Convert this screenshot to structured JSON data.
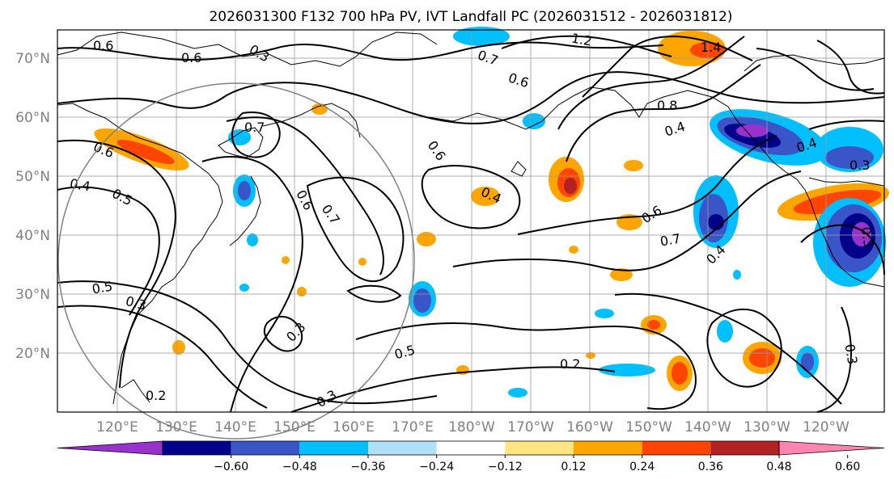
{
  "figure": {
    "title": "2026031300 F132 700 hPa PV, IVT Landfall PC (2026031512 - 2026031812)"
  },
  "map": {
    "lat_labels": [
      "70°N",
      "60°N",
      "50°N",
      "40°N",
      "30°N",
      "20°N"
    ],
    "lon_labels": [
      "120°E",
      "130°E",
      "140°E",
      "150°E",
      "160°E",
      "170°E",
      "180°W",
      "170°W",
      "160°W",
      "150°W",
      "140°W",
      "130°W",
      "120°W"
    ],
    "contour_labels": [
      "0.6",
      "0.6",
      "0.3",
      "1.2",
      "1.4",
      "0.7",
      "0.6",
      "0.8",
      "0.4",
      "0.4",
      "0.3",
      "0.6",
      "0.7",
      "0.4",
      "0.6",
      "0.4",
      "0.5",
      "0.6",
      "0.7",
      "0.7",
      "0.6",
      "0.4",
      "0.5",
      "0.3",
      "0.3",
      "0.5",
      "0.2",
      "0.3",
      "0.2",
      "0.3",
      "0.3"
    ]
  },
  "colorbar": {
    "tick_labels": [
      "−0.60",
      "−0.48",
      "−0.36",
      "−0.24",
      "−0.12",
      "0.12",
      "0.24",
      "0.36",
      "0.48",
      "0.60"
    ],
    "colors": [
      "#9932cc",
      "#00008b",
      "#3a55c8",
      "#00bfff",
      "#b0e0f8",
      "#ffffff",
      "#ffe680",
      "#ffa500",
      "#ff4500",
      "#b22222",
      "#ff85b0"
    ]
  }
}
